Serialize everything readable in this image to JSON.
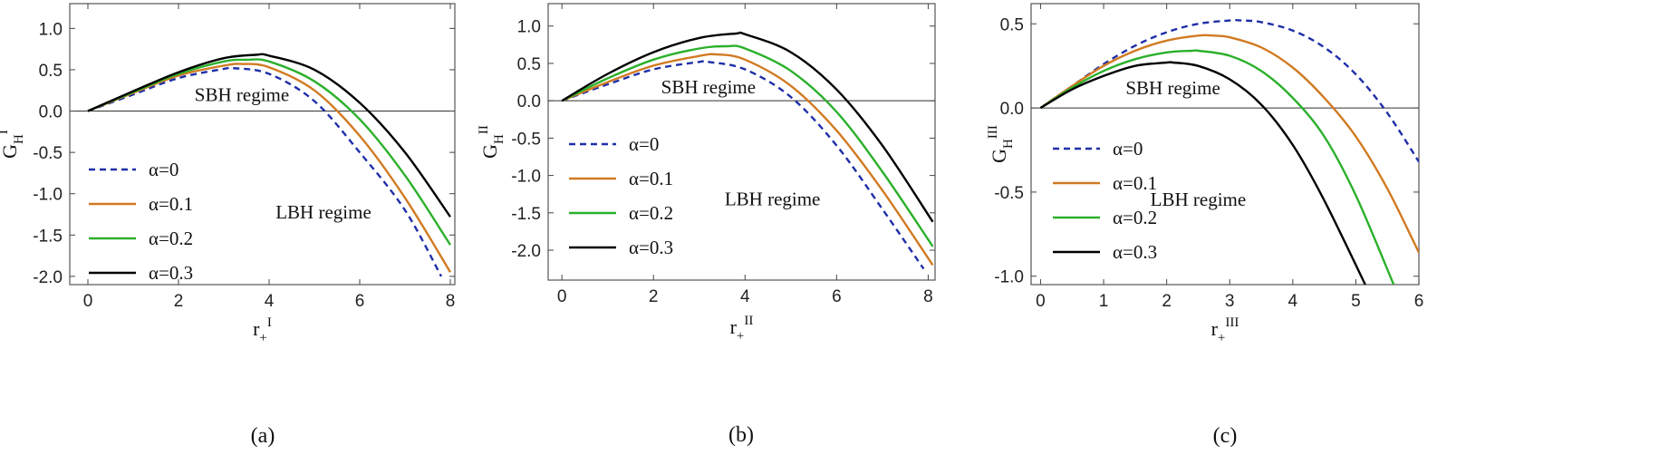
{
  "figure": {
    "chart_data": [
      {
        "type": "line",
        "panel": "a",
        "caption": "(a)",
        "xlabel": "r+I",
        "xlabel_base": "r",
        "xlabel_sub": "+",
        "xlabel_sup": "I",
        "ylabel": "GHI",
        "ylabel_base": "G",
        "ylabel_sub": "H",
        "ylabel_sup": "I",
        "xlim": [
          -0.4,
          8.1
        ],
        "ylim": [
          -2.1,
          1.3
        ],
        "xticks": [
          0,
          2,
          4,
          6,
          8
        ],
        "xtick_labels": [
          "0",
          "2",
          "4",
          "6",
          "8"
        ],
        "yticks": [
          -2.0,
          -1.5,
          -1.0,
          -0.5,
          0.0,
          0.5,
          1.0
        ],
        "ytick_labels": [
          "-2.0",
          "-1.5",
          "-1.0",
          "-0.5",
          "0.0",
          "0.5",
          "1.0"
        ],
        "zero_line": true,
        "annotations": [
          {
            "text": "SBH regime",
            "x": 3.4,
            "y": 0.12
          },
          {
            "text": "LBH regime",
            "x": 5.2,
            "y": -1.3
          }
        ],
        "series": [
          {
            "name": "α=0",
            "color": "#1f2fa8",
            "dash": true,
            "x": [
              0,
              1,
              2,
              3,
              3.2,
              4,
              5,
              6,
              7,
              7.8
            ],
            "y": [
              0,
              0.2,
              0.4,
              0.51,
              0.52,
              0.45,
              0.12,
              -0.5,
              -1.2,
              -2.0
            ]
          },
          {
            "name": "α=0.1",
            "color": "#d17a22",
            "dash": false,
            "x": [
              0,
              1,
              2,
              3,
              3.4,
              4,
              5,
              6,
              7,
              8
            ],
            "y": [
              0,
              0.22,
              0.43,
              0.55,
              0.57,
              0.53,
              0.25,
              -0.3,
              -1.05,
              -1.95
            ]
          },
          {
            "name": "α=0.2",
            "color": "#2bb02b",
            "dash": false,
            "x": [
              0,
              1,
              2,
              3,
              3.5,
              4,
              5,
              6,
              7,
              8
            ],
            "y": [
              0,
              0.23,
              0.45,
              0.6,
              0.62,
              0.6,
              0.36,
              -0.1,
              -0.78,
              -1.62
            ]
          },
          {
            "name": "α=0.3",
            "color": "#000000",
            "dash": false,
            "x": [
              0,
              1,
              2,
              3,
              3.7,
              4,
              5,
              6,
              7,
              8
            ],
            "y": [
              0,
              0.24,
              0.47,
              0.64,
              0.68,
              0.67,
              0.5,
              0.1,
              -0.5,
              -1.28
            ]
          }
        ]
      },
      {
        "type": "line",
        "panel": "b",
        "caption": "(b)",
        "xlabel": "r+II",
        "xlabel_base": "r",
        "xlabel_sub": "+",
        "xlabel_sup": "II",
        "ylabel": "GHII",
        "ylabel_base": "G",
        "ylabel_sub": "H",
        "ylabel_sup": "II",
        "xlim": [
          -0.3,
          8.15
        ],
        "ylim": [
          -2.4,
          1.3
        ],
        "xticks": [
          0,
          2,
          4,
          6,
          8
        ],
        "xtick_labels": [
          "0",
          "2",
          "4",
          "6",
          "8"
        ],
        "yticks": [
          -2.0,
          -1.5,
          -1.0,
          -0.5,
          0.0,
          0.5,
          1.0
        ],
        "ytick_labels": [
          "-2.0",
          "-1.5",
          "-1.0",
          "-0.5",
          "0.0",
          "0.5",
          "1.0"
        ],
        "zero_line": true,
        "annotations": [
          {
            "text": "SBH regime",
            "x": 3.2,
            "y": 0.1
          },
          {
            "text": "LBH regime",
            "x": 4.6,
            "y": -1.4
          }
        ],
        "series": [
          {
            "name": "α=0",
            "color": "#1f2fa8",
            "dash": true,
            "x": [
              0,
              1,
              2,
              3,
              3.2,
              4,
              5,
              6,
              7,
              7.9
            ],
            "y": [
              0,
              0.22,
              0.42,
              0.52,
              0.52,
              0.42,
              0.05,
              -0.6,
              -1.45,
              -2.25
            ]
          },
          {
            "name": "α=0.1",
            "color": "#d17a22",
            "dash": false,
            "x": [
              0,
              1,
              2,
              3,
              3.4,
              4,
              5,
              6,
              7,
              8.1
            ],
            "y": [
              0,
              0.25,
              0.47,
              0.6,
              0.62,
              0.55,
              0.2,
              -0.4,
              -1.2,
              -2.2
            ]
          },
          {
            "name": "α=0.2",
            "color": "#2bb02b",
            "dash": false,
            "x": [
              0,
              1,
              2,
              3,
              3.6,
              4,
              5,
              6,
              7,
              8.1
            ],
            "y": [
              0,
              0.3,
              0.55,
              0.7,
              0.73,
              0.7,
              0.4,
              -0.15,
              -0.95,
              -1.95
            ]
          },
          {
            "name": "α=0.3",
            "color": "#000000",
            "dash": false,
            "x": [
              0,
              1,
              2,
              3,
              3.8,
              4,
              5,
              6,
              7,
              8.1
            ],
            "y": [
              0,
              0.36,
              0.65,
              0.84,
              0.9,
              0.89,
              0.65,
              0.15,
              -0.6,
              -1.62
            ]
          }
        ]
      },
      {
        "type": "line",
        "panel": "c",
        "caption": "(c)",
        "xlabel": "r+III",
        "xlabel_base": "r",
        "xlabel_sub": "+",
        "xlabel_sup": "III",
        "ylabel": "GHIII",
        "ylabel_base": "G",
        "ylabel_sub": "H",
        "ylabel_sup": "III",
        "xlim": [
          -0.15,
          6.0
        ],
        "ylim": [
          -1.05,
          0.62
        ],
        "xticks": [
          0,
          1,
          2,
          3,
          4,
          5,
          6
        ],
        "xtick_labels": [
          "0",
          "1",
          "2",
          "3",
          "4",
          "5",
          "6"
        ],
        "yticks": [
          -1.0,
          -0.5,
          0.0,
          0.5
        ],
        "ytick_labels": [
          "-1.0",
          "-0.5",
          "0.0",
          "0.5"
        ],
        "zero_line": true,
        "annotations": [
          {
            "text": "SBH regime",
            "x": 2.1,
            "y": 0.08
          },
          {
            "text": "LBH regime",
            "x": 2.5,
            "y": -0.58
          }
        ],
        "series": [
          {
            "name": "α=0",
            "color": "#1f2fa8",
            "dash": true,
            "x": [
              0,
              0.5,
              1,
              1.5,
              2,
              2.5,
              3,
              3.2,
              3.5,
              4,
              4.5,
              5,
              5.5,
              6
            ],
            "y": [
              0,
              0.13,
              0.26,
              0.37,
              0.45,
              0.5,
              0.52,
              0.52,
              0.51,
              0.46,
              0.36,
              0.2,
              -0.03,
              -0.32
            ]
          },
          {
            "name": "α=0.1",
            "color": "#d17a22",
            "dash": false,
            "x": [
              0,
              0.5,
              1,
              1.5,
              2,
              2.5,
              2.75,
              3,
              3.5,
              4,
              4.5,
              5,
              5.5,
              6
            ],
            "y": [
              0,
              0.13,
              0.25,
              0.34,
              0.4,
              0.43,
              0.43,
              0.42,
              0.36,
              0.24,
              0.06,
              -0.17,
              -0.48,
              -0.86
            ]
          },
          {
            "name": "α=0.2",
            "color": "#2bb02b",
            "dash": false,
            "x": [
              0,
              0.5,
              1,
              1.5,
              2,
              2.4,
              2.5,
              3,
              3.5,
              4,
              4.5,
              5,
              5.6
            ],
            "y": [
              0,
              0.12,
              0.22,
              0.29,
              0.33,
              0.34,
              0.34,
              0.31,
              0.22,
              0.06,
              -0.17,
              -0.52,
              -1.05
            ]
          },
          {
            "name": "α=0.3",
            "color": "#000000",
            "dash": false,
            "x": [
              0,
              0.5,
              1,
              1.5,
              2,
              2.1,
              2.5,
              3,
              3.5,
              4,
              4.5,
              5.15
            ],
            "y": [
              0,
              0.11,
              0.19,
              0.25,
              0.27,
              0.27,
              0.25,
              0.17,
              0.02,
              -0.22,
              -0.55,
              -1.05
            ]
          }
        ]
      }
    ]
  }
}
